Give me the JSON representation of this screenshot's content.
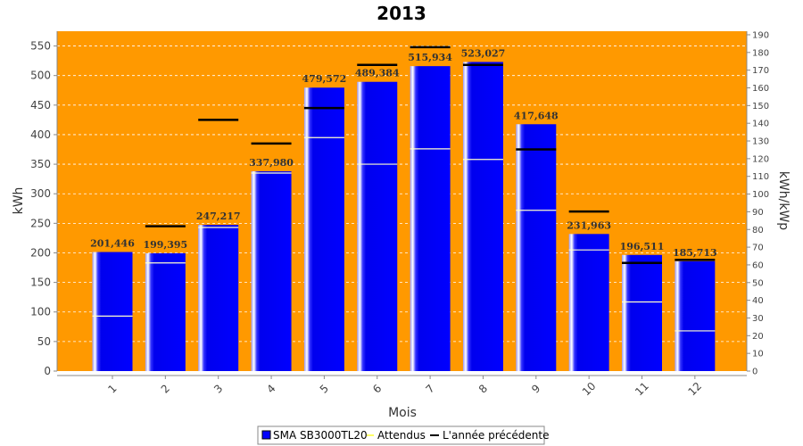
{
  "chart_data": {
    "type": "bar",
    "title": "2013",
    "xlabel": "Mois",
    "ylabel": "kWh",
    "y2label": "kWh/kWp",
    "ylim": [
      0,
      575
    ],
    "y2lim": [
      0,
      192
    ],
    "yticks": [
      0,
      50,
      100,
      150,
      200,
      250,
      300,
      350,
      400,
      450,
      500,
      550
    ],
    "y2ticks": [
      0,
      10,
      20,
      30,
      40,
      50,
      60,
      70,
      80,
      90,
      100,
      110,
      120,
      130,
      140,
      150,
      160,
      170,
      180,
      190
    ],
    "categories": [
      "1",
      "2",
      "3",
      "4",
      "5",
      "6",
      "7",
      "8",
      "9",
      "10",
      "11",
      "12"
    ],
    "series": [
      {
        "name": "SMA SB3000TL20",
        "kind": "bar",
        "color": "#0000ff",
        "values": [
          201.446,
          199.395,
          247.217,
          337.98,
          479.572,
          489.384,
          515.934,
          523.027,
          417.648,
          231.963,
          196.511,
          185.713
        ],
        "labels": [
          "201,446",
          "199,395",
          "247,217",
          "337,980",
          "479,572",
          "489,384",
          "515,934",
          "523,027",
          "417,648",
          "231,963",
          "196,511",
          "185,713"
        ]
      },
      {
        "name": "Attendus",
        "kind": "marker",
        "color": "#ffff66",
        "values": [
          93,
          183,
          243,
          335,
          395,
          350,
          376,
          358,
          272,
          205,
          117,
          68
        ]
      },
      {
        "name": "L'année précédente",
        "kind": "marker",
        "color": "#000000",
        "values": [
          null,
          245,
          425,
          385,
          445,
          518,
          548,
          518,
          375,
          270,
          183,
          188
        ]
      }
    ],
    "plot_background": "#ff9900",
    "grid": true,
    "legend": "bottom"
  }
}
